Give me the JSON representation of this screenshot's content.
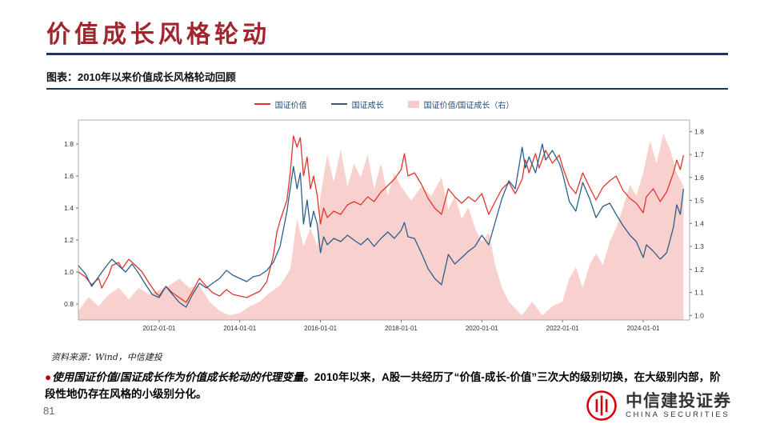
{
  "slide": {
    "title": "价值成长风格轮动",
    "figure_caption": "图表：2010年以来价值成长风格轮动回顾",
    "source": "资料来源：Wind，中信建投",
    "bullet": {
      "lead": "使用国证价值/国证成长作为价值成长轮动的代理变量。",
      "body": "2010年以来，A股一共经历了“价值-成长-价值”三次大的级别切换，在大级别内部，阶段性地仍存在风格的小级别分化。"
    },
    "page_number": "81",
    "logo": {
      "cn": "中信建投证券",
      "en": "CHINA SECURITIES"
    }
  },
  "colors": {
    "title_red": "#A0262E",
    "rule_navy": "#17375E",
    "logo_red": "#D7000F",
    "value_line": "#E0362C",
    "growth_line": "#2C5F8A",
    "ratio_fill": "#F7CBC9"
  },
  "chart_data": {
    "type": "line",
    "title": "2010年以来价值成长风格轮动回顾",
    "legend_position": "top",
    "grid": false,
    "x_axis": {
      "tick_values": [
        2012,
        2014,
        2016,
        2018,
        2020,
        2022,
        2024
      ],
      "tick_labels": [
        "2012-01-01",
        "2014-01-01",
        "2016-01-01",
        "2018-01-01",
        "2020-01-01",
        "2022-01-01",
        "2024-01-01"
      ],
      "range": [
        2010,
        2025.15
      ]
    },
    "left_axis": {
      "ticks": [
        0.8,
        1.0,
        1.2,
        1.4,
        1.6,
        1.8
      ],
      "range": [
        0.7,
        1.95
      ]
    },
    "right_axis": {
      "ticks": [
        1.0,
        1.1,
        1.2,
        1.3,
        1.4,
        1.5,
        1.6,
        1.7,
        1.8
      ],
      "range": [
        0.98,
        1.85
      ]
    },
    "series": [
      {
        "name": "国证价值",
        "type": "line",
        "axis": "left",
        "color": "#E0362C",
        "points": [
          [
            2010.0,
            1.0
          ],
          [
            2010.17,
            0.97
          ],
          [
            2010.33,
            0.92
          ],
          [
            2010.5,
            0.96
          ],
          [
            2010.58,
            0.9
          ],
          [
            2010.75,
            0.98
          ],
          [
            2010.83,
            1.04
          ],
          [
            2011.0,
            1.06
          ],
          [
            2011.08,
            1.02
          ],
          [
            2011.25,
            1.08
          ],
          [
            2011.42,
            1.04
          ],
          [
            2011.58,
            1.0
          ],
          [
            2011.75,
            0.93
          ],
          [
            2011.92,
            0.87
          ],
          [
            2012.0,
            0.85
          ],
          [
            2012.17,
            0.91
          ],
          [
            2012.33,
            0.87
          ],
          [
            2012.5,
            0.84
          ],
          [
            2012.67,
            0.81
          ],
          [
            2012.83,
            0.88
          ],
          [
            2013.0,
            0.96
          ],
          [
            2013.17,
            0.91
          ],
          [
            2013.33,
            0.87
          ],
          [
            2013.5,
            0.85
          ],
          [
            2013.67,
            0.89
          ],
          [
            2013.83,
            0.86
          ],
          [
            2014.0,
            0.85
          ],
          [
            2014.17,
            0.84
          ],
          [
            2014.33,
            0.86
          ],
          [
            2014.5,
            0.88
          ],
          [
            2014.67,
            0.94
          ],
          [
            2014.83,
            1.1
          ],
          [
            2014.92,
            1.25
          ],
          [
            2015.0,
            1.32
          ],
          [
            2015.17,
            1.45
          ],
          [
            2015.25,
            1.62
          ],
          [
            2015.33,
            1.85
          ],
          [
            2015.42,
            1.78
          ],
          [
            2015.5,
            1.84
          ],
          [
            2015.58,
            1.6
          ],
          [
            2015.67,
            1.72
          ],
          [
            2015.75,
            1.52
          ],
          [
            2015.83,
            1.6
          ],
          [
            2015.92,
            1.48
          ],
          [
            2016.0,
            1.3
          ],
          [
            2016.08,
            1.4
          ],
          [
            2016.17,
            1.34
          ],
          [
            2016.33,
            1.38
          ],
          [
            2016.5,
            1.36
          ],
          [
            2016.67,
            1.42
          ],
          [
            2016.83,
            1.44
          ],
          [
            2017.0,
            1.42
          ],
          [
            2017.17,
            1.47
          ],
          [
            2017.33,
            1.44
          ],
          [
            2017.5,
            1.5
          ],
          [
            2017.67,
            1.54
          ],
          [
            2017.83,
            1.58
          ],
          [
            2018.0,
            1.64
          ],
          [
            2018.08,
            1.74
          ],
          [
            2018.17,
            1.6
          ],
          [
            2018.33,
            1.62
          ],
          [
            2018.5,
            1.55
          ],
          [
            2018.67,
            1.46
          ],
          [
            2018.83,
            1.4
          ],
          [
            2019.0,
            1.36
          ],
          [
            2019.17,
            1.52
          ],
          [
            2019.33,
            1.47
          ],
          [
            2019.5,
            1.43
          ],
          [
            2019.67,
            1.47
          ],
          [
            2019.83,
            1.44
          ],
          [
            2020.0,
            1.49
          ],
          [
            2020.17,
            1.36
          ],
          [
            2020.33,
            1.44
          ],
          [
            2020.5,
            1.52
          ],
          [
            2020.67,
            1.56
          ],
          [
            2020.83,
            1.49
          ],
          [
            2021.0,
            1.58
          ],
          [
            2021.08,
            1.7
          ],
          [
            2021.17,
            1.62
          ],
          [
            2021.33,
            1.74
          ],
          [
            2021.42,
            1.65
          ],
          [
            2021.58,
            1.76
          ],
          [
            2021.75,
            1.68
          ],
          [
            2021.92,
            1.73
          ],
          [
            2022.0,
            1.66
          ],
          [
            2022.17,
            1.54
          ],
          [
            2022.33,
            1.49
          ],
          [
            2022.5,
            1.62
          ],
          [
            2022.67,
            1.53
          ],
          [
            2022.83,
            1.45
          ],
          [
            2023.0,
            1.53
          ],
          [
            2023.17,
            1.57
          ],
          [
            2023.33,
            1.6
          ],
          [
            2023.5,
            1.51
          ],
          [
            2023.67,
            1.46
          ],
          [
            2023.83,
            1.43
          ],
          [
            2024.0,
            1.37
          ],
          [
            2024.08,
            1.47
          ],
          [
            2024.25,
            1.52
          ],
          [
            2024.42,
            1.44
          ],
          [
            2024.58,
            1.5
          ],
          [
            2024.75,
            1.62
          ],
          [
            2024.83,
            1.7
          ],
          [
            2024.92,
            1.64
          ],
          [
            2025.0,
            1.73
          ]
        ]
      },
      {
        "name": "国证成长",
        "type": "line",
        "axis": "left",
        "color": "#2C5F8A",
        "points": [
          [
            2010.0,
            1.04
          ],
          [
            2010.17,
            0.99
          ],
          [
            2010.33,
            0.91
          ],
          [
            2010.5,
            0.97
          ],
          [
            2010.67,
            1.03
          ],
          [
            2010.83,
            1.08
          ],
          [
            2011.0,
            1.04
          ],
          [
            2011.17,
            1.0
          ],
          [
            2011.33,
            1.05
          ],
          [
            2011.5,
            0.99
          ],
          [
            2011.67,
            0.92
          ],
          [
            2011.83,
            0.86
          ],
          [
            2012.0,
            0.84
          ],
          [
            2012.17,
            0.91
          ],
          [
            2012.33,
            0.86
          ],
          [
            2012.5,
            0.81
          ],
          [
            2012.67,
            0.78
          ],
          [
            2012.83,
            0.86
          ],
          [
            2013.0,
            0.93
          ],
          [
            2013.17,
            0.9
          ],
          [
            2013.33,
            0.93
          ],
          [
            2013.5,
            0.96
          ],
          [
            2013.67,
            1.01
          ],
          [
            2013.83,
            0.98
          ],
          [
            2014.0,
            0.96
          ],
          [
            2014.17,
            0.94
          ],
          [
            2014.33,
            0.97
          ],
          [
            2014.5,
            0.98
          ],
          [
            2014.67,
            1.01
          ],
          [
            2014.83,
            1.06
          ],
          [
            2015.0,
            1.16
          ],
          [
            2015.17,
            1.38
          ],
          [
            2015.33,
            1.66
          ],
          [
            2015.42,
            1.52
          ],
          [
            2015.5,
            1.62
          ],
          [
            2015.58,
            1.3
          ],
          [
            2015.67,
            1.45
          ],
          [
            2015.75,
            1.28
          ],
          [
            2015.83,
            1.38
          ],
          [
            2015.92,
            1.3
          ],
          [
            2016.0,
            1.12
          ],
          [
            2016.08,
            1.22
          ],
          [
            2016.17,
            1.17
          ],
          [
            2016.33,
            1.21
          ],
          [
            2016.5,
            1.19
          ],
          [
            2016.67,
            1.23
          ],
          [
            2016.83,
            1.2
          ],
          [
            2017.0,
            1.17
          ],
          [
            2017.17,
            1.21
          ],
          [
            2017.33,
            1.16
          ],
          [
            2017.5,
            1.21
          ],
          [
            2017.67,
            1.25
          ],
          [
            2017.83,
            1.21
          ],
          [
            2018.0,
            1.26
          ],
          [
            2018.08,
            1.31
          ],
          [
            2018.17,
            1.22
          ],
          [
            2018.33,
            1.21
          ],
          [
            2018.5,
            1.12
          ],
          [
            2018.67,
            1.02
          ],
          [
            2018.83,
            0.96
          ],
          [
            2019.0,
            0.92
          ],
          [
            2019.17,
            1.11
          ],
          [
            2019.33,
            1.05
          ],
          [
            2019.5,
            1.09
          ],
          [
            2019.67,
            1.13
          ],
          [
            2019.83,
            1.16
          ],
          [
            2020.0,
            1.23
          ],
          [
            2020.17,
            1.17
          ],
          [
            2020.33,
            1.31
          ],
          [
            2020.5,
            1.46
          ],
          [
            2020.67,
            1.57
          ],
          [
            2020.83,
            1.52
          ],
          [
            2021.0,
            1.78
          ],
          [
            2021.08,
            1.65
          ],
          [
            2021.17,
            1.72
          ],
          [
            2021.33,
            1.62
          ],
          [
            2021.5,
            1.8
          ],
          [
            2021.58,
            1.7
          ],
          [
            2021.75,
            1.76
          ],
          [
            2021.92,
            1.68
          ],
          [
            2022.0,
            1.62
          ],
          [
            2022.17,
            1.44
          ],
          [
            2022.33,
            1.38
          ],
          [
            2022.5,
            1.56
          ],
          [
            2022.67,
            1.46
          ],
          [
            2022.83,
            1.34
          ],
          [
            2023.0,
            1.41
          ],
          [
            2023.17,
            1.43
          ],
          [
            2023.33,
            1.36
          ],
          [
            2023.5,
            1.29
          ],
          [
            2023.67,
            1.23
          ],
          [
            2023.83,
            1.19
          ],
          [
            2024.0,
            1.09
          ],
          [
            2024.08,
            1.17
          ],
          [
            2024.25,
            1.13
          ],
          [
            2024.42,
            1.08
          ],
          [
            2024.58,
            1.12
          ],
          [
            2024.75,
            1.28
          ],
          [
            2024.83,
            1.42
          ],
          [
            2024.92,
            1.36
          ],
          [
            2025.0,
            1.52
          ]
        ]
      },
      {
        "name": "国证价值/国证成长（右）",
        "type": "area",
        "axis": "right",
        "color": "#F7CBC9",
        "points": [
          [
            2010.0,
            1.02
          ],
          [
            2010.25,
            1.08
          ],
          [
            2010.5,
            1.04
          ],
          [
            2010.75,
            1.09
          ],
          [
            2011.0,
            1.12
          ],
          [
            2011.25,
            1.07
          ],
          [
            2011.5,
            1.12
          ],
          [
            2011.75,
            1.09
          ],
          [
            2012.0,
            1.11
          ],
          [
            2012.25,
            1.13
          ],
          [
            2012.5,
            1.16
          ],
          [
            2012.75,
            1.12
          ],
          [
            2013.0,
            1.13
          ],
          [
            2013.25,
            1.06
          ],
          [
            2013.5,
            1.02
          ],
          [
            2013.75,
            1.0
          ],
          [
            2014.0,
            1.01
          ],
          [
            2014.25,
            1.04
          ],
          [
            2014.5,
            1.06
          ],
          [
            2014.75,
            1.1
          ],
          [
            2015.0,
            1.13
          ],
          [
            2015.25,
            1.2
          ],
          [
            2015.42,
            1.42
          ],
          [
            2015.58,
            1.3
          ],
          [
            2015.75,
            1.38
          ],
          [
            2015.92,
            1.3
          ],
          [
            2016.0,
            1.52
          ],
          [
            2016.17,
            1.7
          ],
          [
            2016.33,
            1.58
          ],
          [
            2016.5,
            1.72
          ],
          [
            2016.67,
            1.56
          ],
          [
            2016.83,
            1.66
          ],
          [
            2017.0,
            1.6
          ],
          [
            2017.17,
            1.7
          ],
          [
            2017.33,
            1.55
          ],
          [
            2017.5,
            1.66
          ],
          [
            2017.67,
            1.52
          ],
          [
            2017.83,
            1.62
          ],
          [
            2018.0,
            1.56
          ],
          [
            2018.25,
            1.5
          ],
          [
            2018.5,
            1.56
          ],
          [
            2018.75,
            1.52
          ],
          [
            2019.0,
            1.6
          ],
          [
            2019.17,
            1.46
          ],
          [
            2019.33,
            1.52
          ],
          [
            2019.5,
            1.42
          ],
          [
            2019.67,
            1.47
          ],
          [
            2019.83,
            1.38
          ],
          [
            2020.0,
            1.32
          ],
          [
            2020.17,
            1.36
          ],
          [
            2020.33,
            1.22
          ],
          [
            2020.5,
            1.12
          ],
          [
            2020.67,
            1.06
          ],
          [
            2020.83,
            1.03
          ],
          [
            2021.0,
            1.0
          ],
          [
            2021.25,
            1.06
          ],
          [
            2021.5,
            1.0
          ],
          [
            2021.75,
            1.04
          ],
          [
            2022.0,
            1.06
          ],
          [
            2022.17,
            1.16
          ],
          [
            2022.33,
            1.21
          ],
          [
            2022.5,
            1.12
          ],
          [
            2022.67,
            1.22
          ],
          [
            2022.83,
            1.27
          ],
          [
            2023.0,
            1.22
          ],
          [
            2023.17,
            1.32
          ],
          [
            2023.33,
            1.38
          ],
          [
            2023.5,
            1.47
          ],
          [
            2023.67,
            1.57
          ],
          [
            2023.83,
            1.52
          ],
          [
            2024.0,
            1.62
          ],
          [
            2024.17,
            1.76
          ],
          [
            2024.33,
            1.66
          ],
          [
            2024.5,
            1.79
          ],
          [
            2024.67,
            1.72
          ],
          [
            2024.83,
            1.62
          ],
          [
            2025.0,
            1.56
          ]
        ]
      }
    ]
  }
}
